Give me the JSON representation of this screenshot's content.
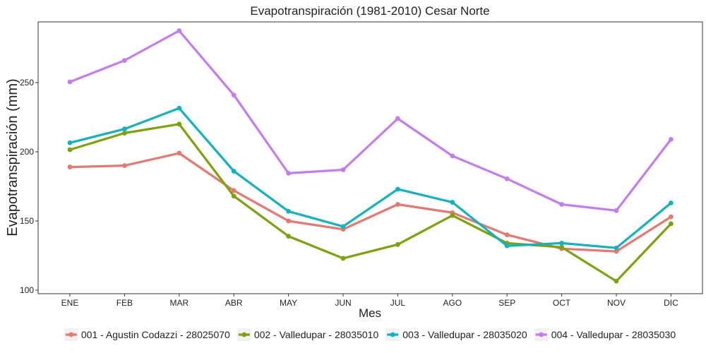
{
  "chart_data": {
    "type": "line",
    "title": "Evapotranspiración (1981-2010)  Cesar Norte",
    "xlabel": "Mes",
    "ylabel": "Evapotranspiración  (mm)",
    "categories": [
      "ENE",
      "FEB",
      "MAR",
      "ABR",
      "MAY",
      "JUN",
      "JUL",
      "AGO",
      "SEP",
      "OCT",
      "NOV",
      "DIC"
    ],
    "y_ticks": [
      100,
      150,
      200,
      250
    ],
    "ylim": [
      97,
      292
    ],
    "grid": false,
    "legend_position": "bottom",
    "series": [
      {
        "name": "001 - Agustin Codazzi - 28025070",
        "color": "#e8776f",
        "values": [
          189,
          190,
          199,
          172,
          150,
          144,
          162,
          156,
          140,
          130,
          128,
          153
        ]
      },
      {
        "name": "002 - Valledupar - 28035010",
        "color": "#7ca30a",
        "values": [
          201.5,
          213.5,
          220,
          168,
          139,
          123,
          133,
          154,
          134,
          131,
          106.5,
          148
        ]
      },
      {
        "name": "003 - Valledupar - 28035020",
        "color": "#10b4c0",
        "values": [
          206.5,
          216.5,
          231.5,
          186,
          157,
          146,
          173,
          163.5,
          132,
          134,
          130.5,
          163
        ]
      },
      {
        "name": "004 - Valledupar - 28035030",
        "color": "#c47cf2",
        "values": [
          250.5,
          266,
          287.5,
          241,
          184.5,
          187,
          224,
          197,
          180.5,
          162,
          157.5,
          209
        ]
      }
    ]
  }
}
